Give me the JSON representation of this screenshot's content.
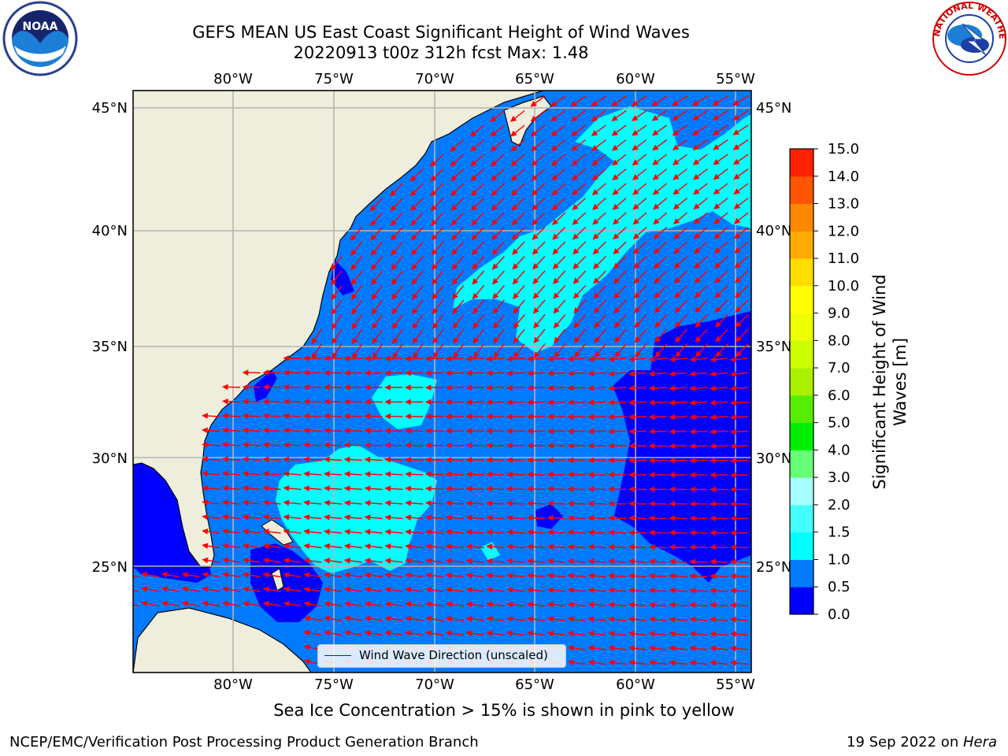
{
  "header": {
    "title_line1": "GEFS MEAN US East Coast Significant Height of Wind Waves",
    "title_line2": "20220913 t00z 312h fcst   Max: 1.48"
  },
  "map": {
    "lon_ticks": [
      "80°W",
      "75°W",
      "70°W",
      "65°W",
      "60°W",
      "55°W"
    ],
    "lat_ticks": [
      "45°N",
      "40°N",
      "35°N",
      "30°N",
      "25°N"
    ],
    "legend_label": "Wind Wave Direction (unscaled)",
    "colors": {
      "land": "#efeedc",
      "ocean_0_05": "#0000ff",
      "ocean_05_10": "#007bff",
      "ocean_10_15": "#00ffff",
      "arrow": "#ff0000",
      "grid": "#b4b4b4"
    }
  },
  "colorbar": {
    "label": "Significant Height of Wind Waves [m]",
    "label_line1": "Significant Height of Wind",
    "label_line2": "Waves [m]",
    "ticks": [
      "0.0",
      "0.5",
      "1.0",
      "1.5",
      "2.0",
      "3.0",
      "4.0",
      "5.0",
      "6.0",
      "7.0",
      "8.0",
      "9.0",
      "10.0",
      "11.0",
      "12.0",
      "13.0",
      "14.0",
      "15.0"
    ],
    "colors": [
      "#0000ff",
      "#007bff",
      "#00ffff",
      "#45ffff",
      "#a7ffff",
      "#66ff77",
      "#00ee00",
      "#55ee00",
      "#aaee00",
      "#ccff00",
      "#eeff00",
      "#ffff00",
      "#ffdd00",
      "#ffaa00",
      "#ff8800",
      "#ff5500",
      "#ff2200"
    ]
  },
  "logos": {
    "noaa": "NOAA",
    "nws": "NATIONAL WEATHER SERVICE"
  },
  "footer": {
    "note": "Sea Ice Concentration > 15% is shown in pink to yellow",
    "left": "NCEP/EMC/Verification Post Processing Product Generation Branch",
    "right_prefix": "19 Sep 2022 on ",
    "right_host": "Hera"
  }
}
